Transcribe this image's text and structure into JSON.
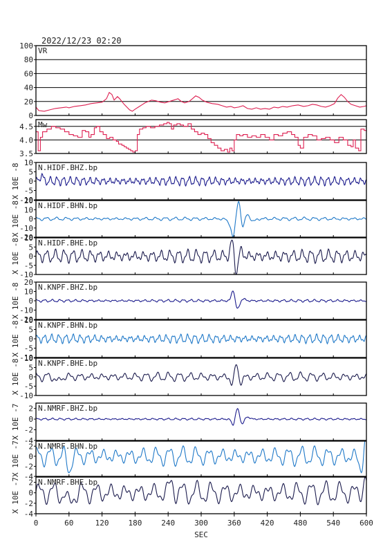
{
  "header": {
    "datetime": "2022/12/23 02:20"
  },
  "chart_data": {
    "type": "line",
    "title": "2022/12/23 02:20",
    "xlabel": "SEC",
    "xlim": [
      0,
      600
    ],
    "x_ticks": [
      0,
      60,
      120,
      180,
      240,
      300,
      360,
      420,
      480,
      540,
      600
    ],
    "panels": [
      {
        "id": "vr",
        "label": "VR",
        "ylabel": "",
        "ylim": [
          0,
          100
        ],
        "y_ticks": [
          0,
          20,
          40,
          60,
          80,
          100
        ],
        "grid": true,
        "color": "#dd1e50",
        "style": "line",
        "points": [
          [
            0,
            12
          ],
          [
            5,
            7
          ],
          [
            15,
            6
          ],
          [
            25,
            8
          ],
          [
            35,
            10
          ],
          [
            45,
            11
          ],
          [
            55,
            12
          ],
          [
            60,
            11
          ],
          [
            70,
            13
          ],
          [
            80,
            14
          ],
          [
            90,
            15
          ],
          [
            100,
            17
          ],
          [
            110,
            18
          ],
          [
            120,
            19
          ],
          [
            128,
            24
          ],
          [
            133,
            33
          ],
          [
            138,
            30
          ],
          [
            142,
            22
          ],
          [
            148,
            27
          ],
          [
            152,
            24
          ],
          [
            156,
            20
          ],
          [
            160,
            16
          ],
          [
            165,
            12
          ],
          [
            170,
            8
          ],
          [
            175,
            6
          ],
          [
            180,
            9
          ],
          [
            186,
            12
          ],
          [
            192,
            15
          ],
          [
            198,
            18
          ],
          [
            204,
            20
          ],
          [
            210,
            22
          ],
          [
            218,
            21
          ],
          [
            226,
            19
          ],
          [
            234,
            18
          ],
          [
            242,
            20
          ],
          [
            250,
            22
          ],
          [
            258,
            24
          ],
          [
            264,
            20
          ],
          [
            270,
            18
          ],
          [
            278,
            20
          ],
          [
            284,
            24
          ],
          [
            290,
            28
          ],
          [
            296,
            26
          ],
          [
            302,
            22
          ],
          [
            310,
            19
          ],
          [
            320,
            17
          ],
          [
            330,
            16
          ],
          [
            338,
            14
          ],
          [
            346,
            12
          ],
          [
            354,
            13
          ],
          [
            360,
            11
          ],
          [
            368,
            12
          ],
          [
            376,
            14
          ],
          [
            384,
            10
          ],
          [
            392,
            9
          ],
          [
            400,
            11
          ],
          [
            408,
            9
          ],
          [
            416,
            10
          ],
          [
            424,
            9
          ],
          [
            432,
            12
          ],
          [
            440,
            11
          ],
          [
            448,
            13
          ],
          [
            456,
            12
          ],
          [
            466,
            14
          ],
          [
            476,
            15
          ],
          [
            486,
            13
          ],
          [
            494,
            14
          ],
          [
            502,
            16
          ],
          [
            510,
            15
          ],
          [
            518,
            13
          ],
          [
            526,
            12
          ],
          [
            534,
            14
          ],
          [
            542,
            17
          ],
          [
            548,
            25
          ],
          [
            554,
            30
          ],
          [
            560,
            26
          ],
          [
            566,
            20
          ],
          [
            572,
            16
          ],
          [
            580,
            14
          ],
          [
            588,
            12
          ],
          [
            596,
            13
          ],
          [
            600,
            14
          ]
        ]
      },
      {
        "id": "mw",
        "label": "Mw",
        "ylabel": "",
        "ylim": [
          3.5,
          4.75
        ],
        "y_ticks": [
          3.5,
          4.0,
          4.5
        ],
        "grid": true,
        "color": "#dd1e50",
        "style": "step",
        "points": [
          [
            0,
            4.3
          ],
          [
            4,
            3.6
          ],
          [
            8,
            4.1
          ],
          [
            12,
            4.3
          ],
          [
            20,
            4.4
          ],
          [
            28,
            4.5
          ],
          [
            36,
            4.45
          ],
          [
            44,
            4.4
          ],
          [
            52,
            4.3
          ],
          [
            60,
            4.2
          ],
          [
            68,
            4.15
          ],
          [
            76,
            4.1
          ],
          [
            84,
            4.35
          ],
          [
            90,
            4.3
          ],
          [
            96,
            4.1
          ],
          [
            100,
            4.2
          ],
          [
            106,
            4.45
          ],
          [
            110,
            4.5
          ],
          [
            116,
            4.3
          ],
          [
            122,
            4.2
          ],
          [
            128,
            4.05
          ],
          [
            134,
            4.1
          ],
          [
            140,
            4.0
          ],
          [
            146,
            3.95
          ],
          [
            150,
            3.85
          ],
          [
            156,
            3.8
          ],
          [
            160,
            3.75
          ],
          [
            164,
            3.7
          ],
          [
            168,
            3.65
          ],
          [
            172,
            3.6
          ],
          [
            176,
            3.55
          ],
          [
            180,
            3.6
          ],
          [
            184,
            4.2
          ],
          [
            188,
            4.4
          ],
          [
            194,
            4.45
          ],
          [
            200,
            4.5
          ],
          [
            208,
            4.45
          ],
          [
            216,
            4.5
          ],
          [
            224,
            4.55
          ],
          [
            232,
            4.6
          ],
          [
            238,
            4.65
          ],
          [
            242,
            4.6
          ],
          [
            246,
            4.4
          ],
          [
            250,
            4.55
          ],
          [
            256,
            4.6
          ],
          [
            262,
            4.55
          ],
          [
            268,
            4.5
          ],
          [
            276,
            4.6
          ],
          [
            282,
            4.4
          ],
          [
            288,
            4.3
          ],
          [
            294,
            4.2
          ],
          [
            300,
            4.25
          ],
          [
            306,
            4.2
          ],
          [
            312,
            4.05
          ],
          [
            318,
            3.9
          ],
          [
            324,
            3.8
          ],
          [
            330,
            3.7
          ],
          [
            336,
            3.6
          ],
          [
            342,
            3.65
          ],
          [
            348,
            3.55
          ],
          [
            352,
            3.7
          ],
          [
            356,
            3.6
          ],
          [
            360,
            4.0
          ],
          [
            364,
            4.2
          ],
          [
            370,
            4.15
          ],
          [
            376,
            4.2
          ],
          [
            384,
            4.1
          ],
          [
            392,
            4.15
          ],
          [
            400,
            4.1
          ],
          [
            408,
            4.2
          ],
          [
            416,
            4.1
          ],
          [
            424,
            4.0
          ],
          [
            432,
            4.2
          ],
          [
            440,
            4.15
          ],
          [
            448,
            4.25
          ],
          [
            456,
            4.3
          ],
          [
            464,
            4.2
          ],
          [
            470,
            4.1
          ],
          [
            476,
            3.8
          ],
          [
            480,
            3.7
          ],
          [
            486,
            4.1
          ],
          [
            494,
            4.2
          ],
          [
            502,
            4.15
          ],
          [
            510,
            4.0
          ],
          [
            518,
            4.05
          ],
          [
            526,
            4.1
          ],
          [
            534,
            4.0
          ],
          [
            542,
            3.9
          ],
          [
            550,
            4.1
          ],
          [
            558,
            4.0
          ],
          [
            566,
            3.8
          ],
          [
            572,
            3.75
          ],
          [
            576,
            4.0
          ],
          [
            580,
            3.7
          ],
          [
            586,
            3.6
          ],
          [
            590,
            4.4
          ],
          [
            596,
            4.35
          ],
          [
            600,
            4.3
          ]
        ]
      },
      {
        "id": "hidf-bhz",
        "label": "N.HIDF.BHZ.bp",
        "ylabel": "X 10E -8",
        "ylim": [
          -10,
          10
        ],
        "y_ticks": [
          10,
          5,
          0,
          -5,
          -10
        ],
        "color": "#1a1a8c",
        "osc": {
          "amp": 2.0,
          "period": 12,
          "phase": 0.4
        },
        "pulses": [
          [
            10,
            3,
            4
          ]
        ]
      },
      {
        "id": "hidf-bhn",
        "label": "N.HIDF.BHN.bp",
        "ylabel": "X 10E -8",
        "ylim": [
          -20,
          20
        ],
        "y_ticks": [
          20,
          10,
          0,
          -10,
          -20
        ],
        "color": "#1e78c8",
        "osc": {
          "amp": 1.5,
          "period": 18,
          "phase": 1.1
        },
        "pulses": [
          [
            352,
            6,
            -5
          ],
          [
            358,
            4,
            -18
          ],
          [
            368,
            4,
            20
          ],
          [
            376,
            4,
            -10
          ],
          [
            384,
            6,
            5
          ],
          [
            394,
            6,
            -3
          ]
        ]
      },
      {
        "id": "hidf-bhe",
        "label": "N.HIDF.BHE.bp",
        "ylabel": "X 10E -8",
        "ylim": [
          -10,
          10
        ],
        "y_ticks": [
          10,
          5,
          0,
          -5,
          -10
        ],
        "color": "#1a1a4c",
        "osc": {
          "amp": 3.0,
          "period": 16,
          "phase": 0.2
        },
        "pulses": [
          [
            356,
            4,
            8
          ],
          [
            364,
            4,
            -9
          ],
          [
            372,
            5,
            3
          ]
        ]
      },
      {
        "id": "knpf-bhz",
        "label": "N.KNPF.BHZ.bp",
        "ylabel": "X 10E -8",
        "ylim": [
          -20,
          20
        ],
        "y_ticks": [
          20,
          10,
          0,
          -10,
          -20
        ],
        "color": "#1a1a8c",
        "osc": {
          "amp": 1.2,
          "period": 14,
          "phase": 0.8
        },
        "pulses": [
          [
            358,
            4,
            12
          ],
          [
            366,
            5,
            -9
          ],
          [
            376,
            6,
            2
          ]
        ]
      },
      {
        "id": "knpf-bhn",
        "label": "N.KNPF.BHN.bp",
        "ylabel": "X 10E -8",
        "ylim": [
          -10,
          10
        ],
        "y_ticks": [
          10,
          5,
          0,
          -5,
          -10
        ],
        "color": "#1e78c8",
        "osc": {
          "amp": 2.0,
          "period": 13,
          "phase": 0.3
        },
        "pulses": []
      },
      {
        "id": "knpf-bhe",
        "label": "N.KNPF.BHE.bp",
        "ylabel": "X 10E -8",
        "ylim": [
          -10,
          10
        ],
        "y_ticks": [
          10,
          5,
          0,
          -5,
          -10
        ],
        "color": "#1a1a4c",
        "osc": {
          "amp": 2.0,
          "period": 20,
          "phase": 1.4
        },
        "pulses": [
          [
            40,
            5,
            -3
          ],
          [
            356,
            4,
            -4
          ],
          [
            364,
            4,
            7
          ],
          [
            372,
            5,
            -3
          ]
        ]
      },
      {
        "id": "nmrf-bhz",
        "label": "N.NMRF.BHZ.bp",
        "ylabel": "X 10E -7",
        "ylim": [
          -4,
          3
        ],
        "y_ticks": [
          2,
          0,
          -2,
          -4
        ],
        "color": "#1a1a8c",
        "osc": {
          "amp": 0.15,
          "period": 14,
          "phase": 0.6
        },
        "pulses": [
          [
            358,
            4,
            -1.2
          ],
          [
            366,
            5,
            2.0
          ],
          [
            374,
            5,
            -1.0
          ],
          [
            384,
            6,
            0.4
          ]
        ]
      },
      {
        "id": "nmrf-bhn",
        "label": "N.NMRF.BHN.bp",
        "ylabel": "X 10E -7",
        "ylim": [
          -4,
          3
        ],
        "y_ticks": [
          2,
          0,
          -2,
          -4
        ],
        "color": "#1e78c8",
        "osc": {
          "amp": 1.6,
          "period": 24,
          "phase": 0.9
        },
        "pulses": [
          [
            60,
            5,
            -2.5
          ],
          [
            590,
            5,
            -2.5
          ],
          [
            598,
            4,
            3.0
          ]
        ]
      },
      {
        "id": "nmrf-bhe",
        "label": "N.NMRF.BHE.bp",
        "ylabel": "X 10E -7",
        "ylim": [
          -4,
          3
        ],
        "y_ticks": [
          2,
          0,
          -2,
          -4
        ],
        "color": "#1a1a4c",
        "osc": {
          "amp": 1.8,
          "period": 26,
          "phase": 0.1
        },
        "pulses": [
          [
            60,
            6,
            -2.5
          ],
          [
            246,
            5,
            2.0
          ],
          [
            598,
            4,
            3.0
          ]
        ]
      }
    ]
  }
}
